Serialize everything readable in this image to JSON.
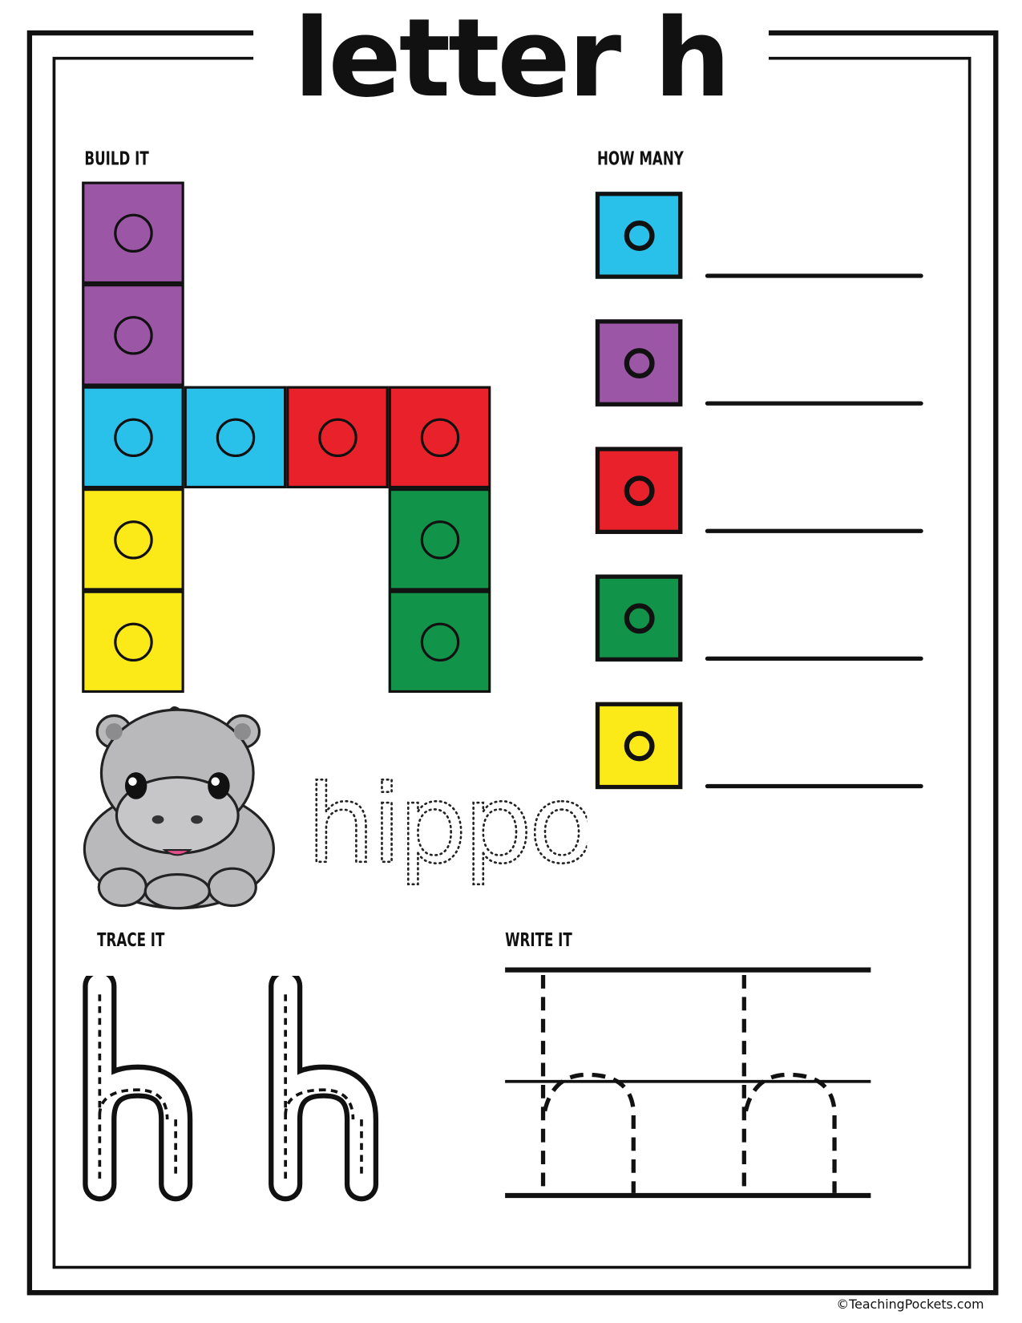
{
  "title": "letter h",
  "sections": {
    "build_it": "BUILD IT",
    "how_many": "HOW MANY",
    "trace_it": "TRACE IT",
    "write_it": "WRITE IT"
  },
  "colors": {
    "purple": "#9b57a5",
    "blue": "#29c1ea",
    "red": "#e9212b",
    "yellow": "#fbea18",
    "green": "#12934a"
  },
  "build_blocks": [
    {
      "color": "purple",
      "row": 0,
      "col": 0
    },
    {
      "color": "purple",
      "row": 1,
      "col": 0
    },
    {
      "color": "blue",
      "row": 2,
      "col": 0
    },
    {
      "color": "blue",
      "row": 2,
      "col": 1
    },
    {
      "color": "red",
      "row": 2,
      "col": 2
    },
    {
      "color": "red",
      "row": 2,
      "col": 3
    },
    {
      "color": "yellow",
      "row": 3,
      "col": 0
    },
    {
      "color": "yellow",
      "row": 4,
      "col": 0
    },
    {
      "color": "green",
      "row": 3,
      "col": 3
    },
    {
      "color": "green",
      "row": 4,
      "col": 3
    }
  ],
  "how_many_items": [
    "blue",
    "purple",
    "red",
    "green",
    "yellow"
  ],
  "picture": {
    "word": "hippo",
    "icon": "hippo-illustration"
  },
  "trace_letter": "h",
  "footer": "©TeachingPockets.com"
}
